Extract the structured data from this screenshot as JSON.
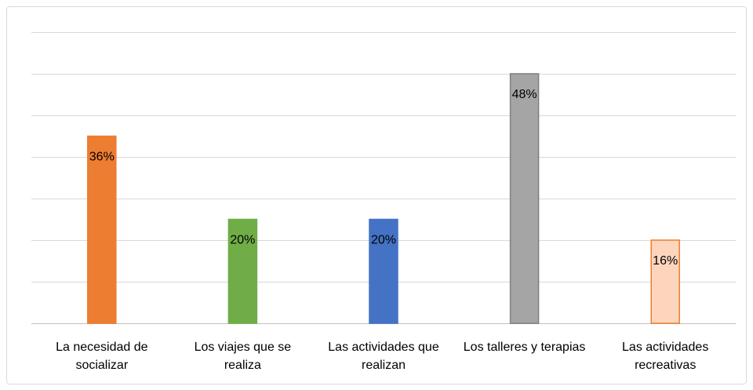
{
  "chart_data": {
    "type": "bar",
    "categories": [
      "La necesidad de socializar",
      "Los viajes que se realiza",
      "Las actividades que realizan",
      "Los talleres y terapias",
      "Las actividades recreativas"
    ],
    "values": [
      36,
      20,
      20,
      48,
      16
    ],
    "value_labels": [
      "36%",
      "20%",
      "20%",
      "48%",
      "16%"
    ],
    "colors": [
      "#ed7d31",
      "#70ad47",
      "#4472c4",
      "#a5a5a5",
      "#fcd5bc"
    ],
    "border_colors": [
      "#ed7d31",
      "#70ad47",
      "#4472c4",
      "#7f7f7f",
      "#ed7d31"
    ],
    "ylim": [
      0,
      56
    ],
    "yticks": [
      0,
      8,
      16,
      24,
      32,
      40,
      48,
      56
    ],
    "grid": true
  }
}
